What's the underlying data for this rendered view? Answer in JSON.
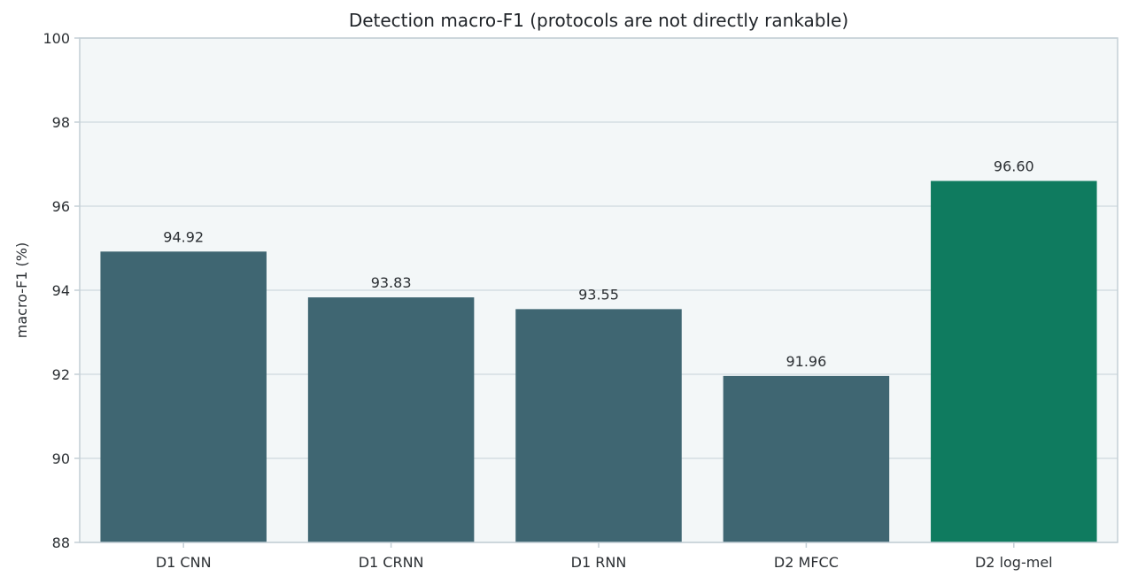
{
  "chart_data": {
    "type": "bar",
    "title": "Detection macro-F1 (protocols are not directly rankable)",
    "xlabel": "",
    "ylabel": "macro-F1 (%)",
    "categories": [
      "D1 CNN",
      "D1 CRNN",
      "D1 RNN",
      "D2 MFCC",
      "D2 log-mel"
    ],
    "values": [
      94.92,
      93.83,
      93.55,
      91.96,
      96.6
    ],
    "value_labels": [
      "94.92",
      "93.83",
      "93.55",
      "91.96",
      "96.60"
    ],
    "ylim": [
      88,
      100
    ],
    "yticks": [
      88,
      90,
      92,
      94,
      96,
      98,
      100
    ],
    "grid": true,
    "bar_colors": [
      "#3f6672",
      "#3f6672",
      "#3f6672",
      "#3f6672",
      "#0f7b5f"
    ],
    "plot_background": "#f3f7f8",
    "grid_color": "#d5dde2",
    "axis_color": "#c4cfd6"
  }
}
